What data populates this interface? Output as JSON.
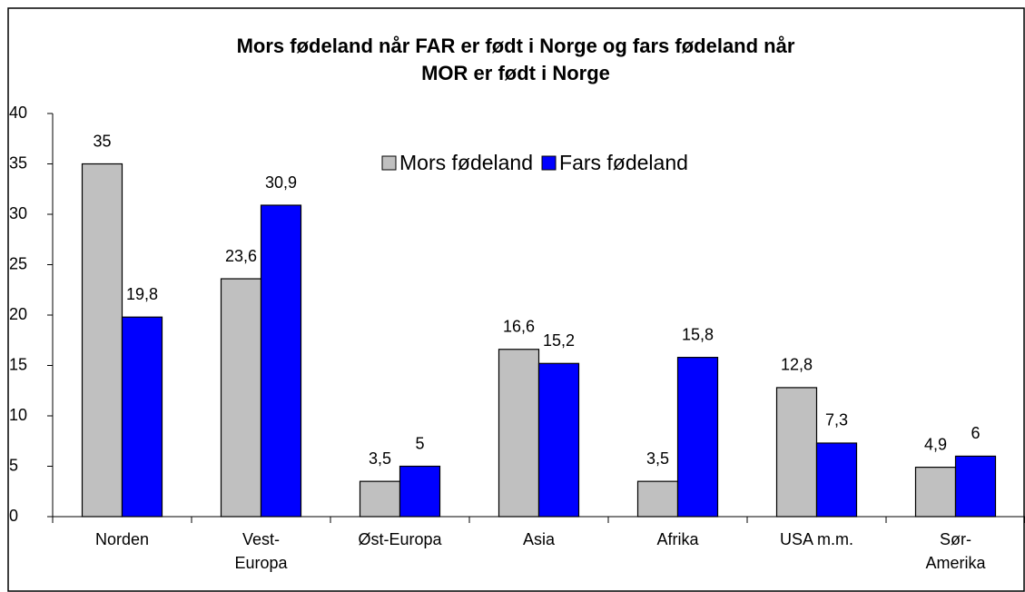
{
  "chart_data": {
    "type": "bar",
    "title": "Mors fødeland når FAR er født i Norge og fars fødeland når\nMOR er født i Norge",
    "categories": [
      "Norden",
      "Vest-\nEuropa",
      "Øst-Europa",
      "Asia",
      "Afrika",
      "USA m.m.",
      "Sør-\nAmerika"
    ],
    "series": [
      {
        "name": "Mors fødeland",
        "color": "#c0c0c0",
        "values": [
          35,
          23.6,
          3.5,
          16.6,
          3.5,
          12.8,
          4.9
        ],
        "value_labels": [
          "35",
          "23,6",
          "3,5",
          "16,6",
          "3,5",
          "12,8",
          "4,9"
        ]
      },
      {
        "name": "Fars fødeland",
        "color": "#0000ff",
        "values": [
          19.8,
          30.9,
          5,
          15.2,
          15.8,
          7.3,
          6
        ],
        "value_labels": [
          "19,8",
          "30,9",
          "5",
          "15,2",
          "15,8",
          "7,3",
          "6"
        ]
      }
    ],
    "ylim": [
      0,
      40
    ],
    "yticks": [
      0,
      5,
      10,
      15,
      20,
      25,
      30,
      35,
      40
    ],
    "grid": false,
    "legend": "top"
  }
}
